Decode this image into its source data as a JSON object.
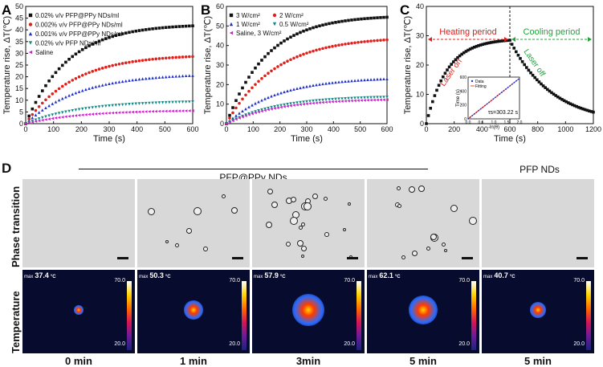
{
  "panels": {
    "a": "A",
    "b": "B",
    "c": "C",
    "d": "D"
  },
  "chart_data": [
    {
      "type": "scatter",
      "id": "A",
      "xlabel": "Time (s)",
      "ylabel": "Temperature rise, ΔT(℃)",
      "xlim": [
        0,
        600
      ],
      "ylim": [
        0,
        50
      ],
      "xticks": [
        "0",
        "100",
        "200",
        "300",
        "400",
        "500",
        "600"
      ],
      "yticks": [
        "0",
        "5",
        "10",
        "15",
        "20",
        "25",
        "30",
        "35",
        "40",
        "45",
        "50"
      ],
      "series": [
        {
          "name": "0.02% v/v PFP@PPy NDs/ml",
          "color": "#111111",
          "marker": "square",
          "plateau": 42.5,
          "tau": 150
        },
        {
          "name": "0.002% v/v PFP@PPy NDs/ml",
          "color": "#e0201b",
          "marker": "circle",
          "plateau": 29.5,
          "tau": 170
        },
        {
          "name": "0.001% v/v PFP@PPy NDs/ml",
          "color": "#1f2fd1",
          "marker": "triangle-up",
          "plateau": 21.5,
          "tau": 190
        },
        {
          "name": "0.02% v/v PFP NDs/ml",
          "color": "#128a86",
          "marker": "triangle-down",
          "plateau": 9.8,
          "tau": 200
        },
        {
          "name": "Saline",
          "color": "#d61ad6",
          "marker": "triangle-left",
          "plateau": 5.8,
          "tau": 200
        }
      ]
    },
    {
      "type": "scatter",
      "id": "B",
      "xlabel": "Time (s)",
      "ylabel": "Temperature rise, ΔT(℃)",
      "xlim": [
        0,
        600
      ],
      "ylim": [
        0,
        60
      ],
      "xticks": [
        "0",
        "100",
        "200",
        "300",
        "400",
        "500",
        "600"
      ],
      "yticks": [
        "0",
        "10",
        "20",
        "30",
        "40",
        "50",
        "60"
      ],
      "series": [
        {
          "name": "3 W/cm²",
          "color": "#111111",
          "marker": "square",
          "plateau": 55.5,
          "tau": 150
        },
        {
          "name": "2 W/cm²",
          "color": "#e0201b",
          "marker": "circle",
          "plateau": 44.5,
          "tau": 180
        },
        {
          "name": "1 W/cm²",
          "color": "#1f2fd1",
          "marker": "triangle-up",
          "plateau": 24,
          "tau": 190
        },
        {
          "name": "0.5 W/cm²",
          "color": "#128a86",
          "marker": "triangle-down",
          "plateau": 14.2,
          "tau": 190
        },
        {
          "name": "Saline, 3 W/cm²",
          "color": "#d61ad6",
          "marker": "triangle-left",
          "plateau": 12.8,
          "tau": 190
        }
      ]
    },
    {
      "type": "scatter",
      "id": "C",
      "xlabel": "Time (s)",
      "ylabel": "Temperature rise, ΔT(℃)",
      "xlim": [
        0,
        1200
      ],
      "ylim": [
        0,
        40
      ],
      "xticks": [
        "0",
        "200",
        "400",
        "600",
        "800",
        "1000",
        "1200"
      ],
      "yticks": [
        "0",
        "10",
        "20",
        "30",
        "40"
      ],
      "heating_plateau": 29,
      "heating_tau": 150,
      "laser_off_time": 600,
      "cooling_tau": 303.22,
      "annotations": {
        "heating": "Heating period",
        "cooling": "Cooling period",
        "laser_on": "Laser on",
        "laser_off": "Laser off"
      },
      "inset": {
        "xlabel": "-ln(θ)",
        "ylabel": "Time (s)",
        "xticks": [
          "0.0",
          "0.5",
          "1.0",
          "1.5",
          "2.0"
        ],
        "yticks": [
          "0",
          "200",
          "400",
          "600"
        ],
        "legend": [
          "Data",
          "Fitting"
        ],
        "equation": "τs=303.22 s"
      }
    }
  ],
  "panel_d": {
    "group_left": "PFP@PPy NDs",
    "group_right": "PFP NDs",
    "row_top": "Phase transition",
    "row_bottom": "Temperature",
    "times": [
      "0 min",
      "1 min",
      "3min",
      "5 min",
      "5 min"
    ],
    "max_temps": [
      "37.4",
      "50.3",
      "57.9",
      "62.1",
      "40.7"
    ],
    "max_prefix": "max",
    "unit": "°C",
    "scale_top": "70.0",
    "scale_bottom": "20.0"
  }
}
